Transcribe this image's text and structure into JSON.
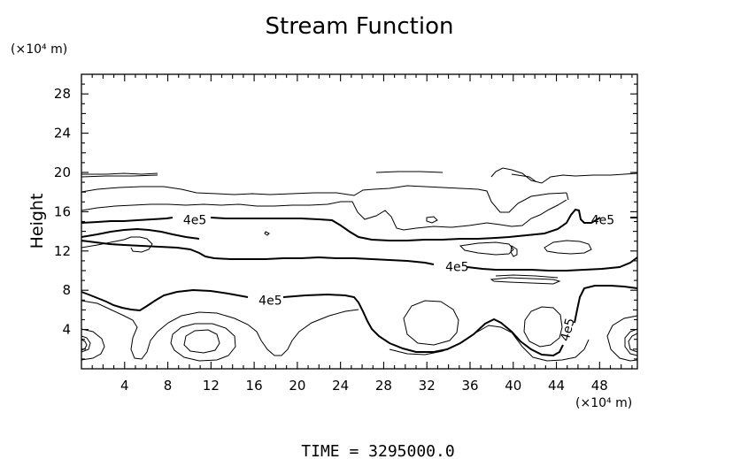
{
  "chart_data": {
    "type": "contour",
    "title": "Stream Function",
    "xlabel": "",
    "ylabel": "Height",
    "x_unit_label": "(×10⁴ m)",
    "y_unit_label": "(×10⁴ m)",
    "xlim": [
      0,
      51.5
    ],
    "ylim": [
      0,
      30
    ],
    "x_ticks": [
      4,
      8,
      12,
      16,
      20,
      24,
      28,
      32,
      36,
      40,
      44,
      48
    ],
    "y_ticks": [
      4,
      8,
      12,
      16,
      20,
      24,
      28
    ],
    "x_tick_labels": [
      "4",
      "8",
      "12",
      "16",
      "20",
      "24",
      "28",
      "32",
      "36",
      "40",
      "44",
      "48"
    ],
    "y_tick_labels": [
      "4",
      "8",
      "12",
      "16",
      "20",
      "24",
      "28"
    ],
    "contour_labels": [
      {
        "text": "4e5",
        "x": 10.5,
        "y": 15.2
      },
      {
        "text": "4e5",
        "x": 48.3,
        "y": 15.2
      },
      {
        "text": "4e5",
        "x": 34.8,
        "y": 10.4
      },
      {
        "text": "4e5",
        "x": 17.5,
        "y": 7.0
      },
      {
        "text": "4e5",
        "x": 45.0,
        "y": 4.0,
        "rotation": -75
      }
    ],
    "footer": "TIME = 3295000.0",
    "grid": false
  }
}
